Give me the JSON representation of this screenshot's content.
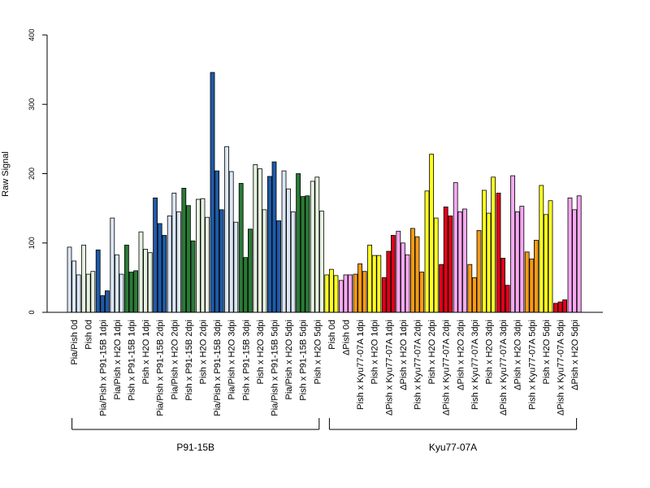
{
  "chart_data": {
    "type": "bar",
    "ylabel": "Raw Signal",
    "ylim": [
      0,
      400
    ],
    "yticks": [
      0,
      100,
      200,
      300,
      400
    ],
    "bars_per_group": 3,
    "categories": [
      "Pia/Pish 0d",
      "Pish 0d",
      "Pia/Pish x P91-15B 1dpi",
      "Pia/Pish x H2O 1dpi",
      "Pish x P91-15B 1dpi",
      "Pish x H2O 1dpi",
      "Pia/Pish x P91-15B 2dpi",
      "Pia/Pish x H2O 2dpi",
      "Pish x P91-15B 2dpi",
      "Pish x H2O 2dpi",
      "Pia/Pish x P91-15B 3dpi",
      "Pia/Pish x H2O 3dpi",
      "Pish x P91-15B 3dpi",
      "Pish x H2O 3dpi",
      "Pia/Pish x P91-15B 5dpi",
      "Pia/Pish x H2O 5dpi",
      "Pish x P91-15B 5dpi",
      "Pish x H2O 5dpi",
      "Pish 0d",
      "ΔPish 0d",
      "Pish x Kyu77-07A 1dpi",
      "Pish x H2O 1dpi",
      "ΔPish x Kyu77-07A 1dpi",
      "ΔPish x H2O 1dpi",
      "Pish x Kyu77-07A 2dpi",
      "Pish x H2O 2dpi",
      "ΔPish x Kyu77-07A 2dpi",
      "ΔPish x H2O 2dpi",
      "Pish x Kyu77-07A 3dpi",
      "Pish x H2O 3dpi",
      "ΔPish x Kyu77-07A 3dpi",
      "ΔPish x H2O 3dpi",
      "Pish x Kyu77-07A 5dpi",
      "Pish x H2O 5dpi",
      "ΔPish x Kyu77-07A 5dpi",
      "ΔPish x H2O 5dpi"
    ],
    "colors": [
      "#dbe7f5",
      "#e6f2e0",
      "#1f5aa6",
      "#dbe7f5",
      "#2a7a36",
      "#e6f2e0",
      "#1f5aa6",
      "#dbe7f5",
      "#2a7a36",
      "#e6f2e0",
      "#1f5aa6",
      "#dbe7f5",
      "#2a7a36",
      "#e6f2e0",
      "#1f5aa6",
      "#dbe7f5",
      "#2a7a36",
      "#e6f2e0",
      "#ffff22",
      "#f7a8f2",
      "#f59a16",
      "#ffff22",
      "#e0001a",
      "#f7a8f2",
      "#f59a16",
      "#ffff22",
      "#e0001a",
      "#f7a8f2",
      "#f59a16",
      "#ffff22",
      "#e0001a",
      "#f7a8f2",
      "#f59a16",
      "#ffff22",
      "#e0001a",
      "#f7a8f2"
    ],
    "values": [
      [
        94,
        74,
        54
      ],
      [
        97,
        55,
        59
      ],
      [
        90,
        24,
        31
      ],
      [
        136,
        83,
        55
      ],
      [
        97,
        58,
        60
      ],
      [
        116,
        91,
        86
      ],
      [
        165,
        128,
        111
      ],
      [
        139,
        172,
        145
      ],
      [
        179,
        154,
        103
      ],
      [
        163,
        164,
        137
      ],
      [
        346,
        204,
        148
      ],
      [
        239,
        203,
        130
      ],
      [
        186,
        79,
        120
      ],
      [
        213,
        207,
        148
      ],
      [
        196,
        217,
        132
      ],
      [
        204,
        178,
        145
      ],
      [
        200,
        167,
        168
      ],
      [
        189,
        195,
        146
      ],
      [
        54,
        62,
        53
      ],
      [
        46,
        54,
        54
      ],
      [
        55,
        70,
        59
      ],
      [
        97,
        82,
        82
      ],
      [
        50,
        88,
        111
      ],
      [
        117,
        100,
        83
      ],
      [
        121,
        109,
        58
      ],
      [
        175,
        228,
        136
      ],
      [
        69,
        152,
        139
      ],
      [
        187,
        145,
        149
      ],
      [
        69,
        50,
        118
      ],
      [
        176,
        143,
        195
      ],
      [
        172,
        78,
        39
      ],
      [
        197,
        145,
        153
      ],
      [
        87,
        77,
        104
      ],
      [
        183,
        141,
        161
      ],
      [
        13,
        15,
        18
      ],
      [
        165,
        148,
        168
      ]
    ],
    "groups": [
      {
        "label": "P91-15B",
        "first": 0,
        "last": 17
      },
      {
        "label": "Kyu77-07A",
        "first": 18,
        "last": 35
      }
    ]
  }
}
